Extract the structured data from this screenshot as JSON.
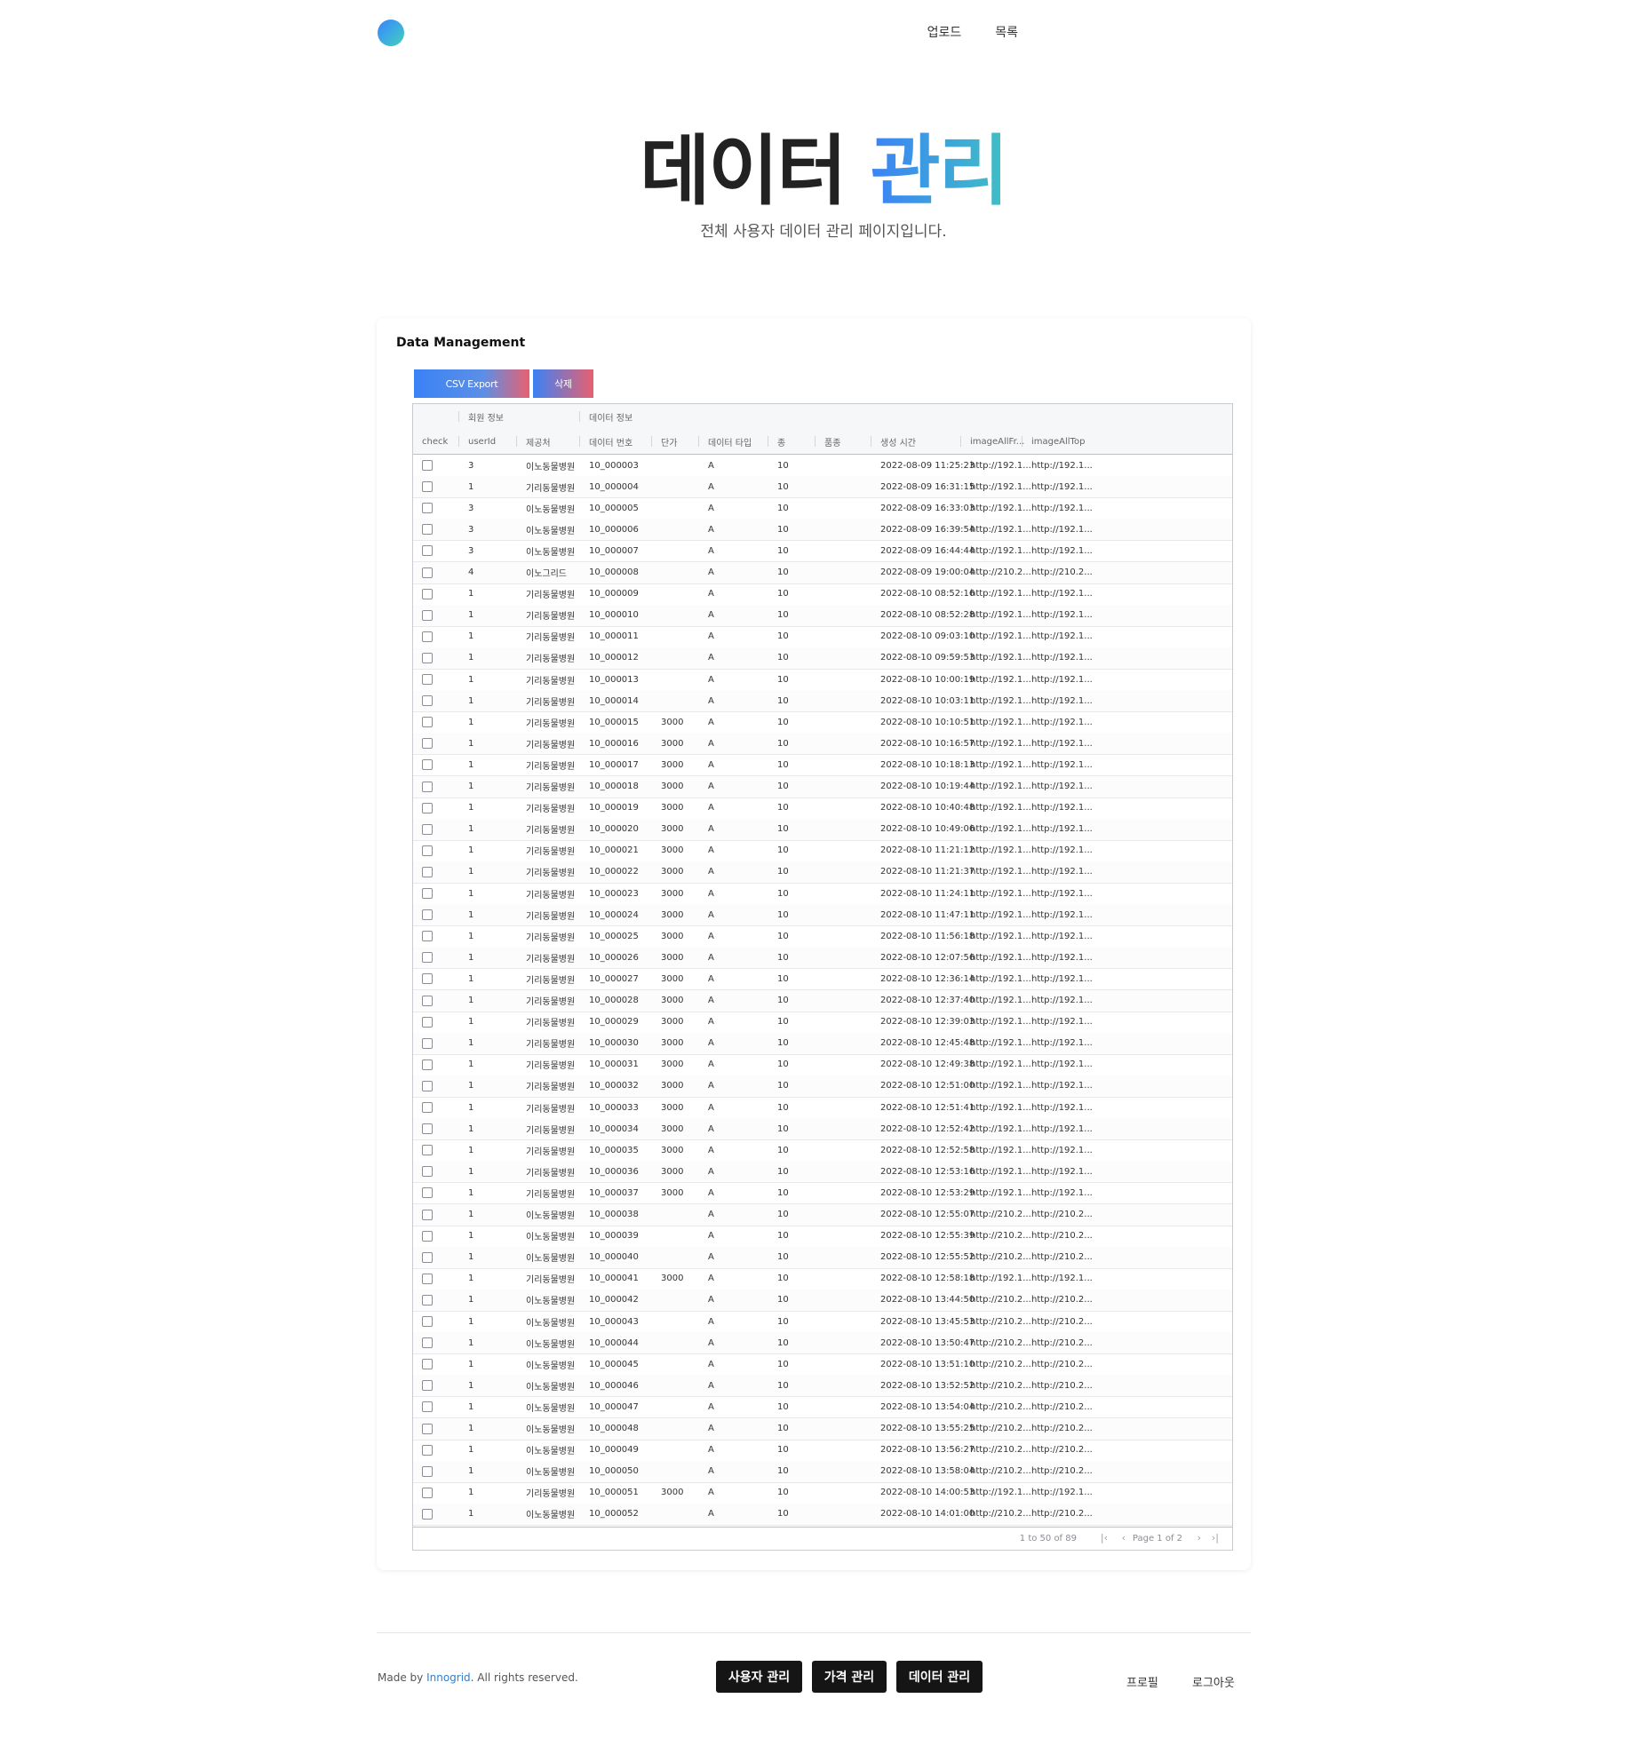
{
  "nav": {
    "upload": "업로드",
    "list": "목록"
  },
  "hero": {
    "title_main": "데이터",
    "title_accent": "관리",
    "subtitle": "전체 사용자 데이터 관리 페이지입니다."
  },
  "card": {
    "title": "Data Management",
    "export_label": "CSV Export",
    "delete_label": "삭제"
  },
  "groups": {
    "member": "회원 정보",
    "data": "데이터 정보"
  },
  "columns": [
    "check",
    "userId",
    "제공처",
    "데이터 번호",
    "단가",
    "데이터 타입",
    "종",
    "품종",
    "생성 시간",
    "imageAllFr...",
    "imageAllTop"
  ],
  "rows": [
    [
      "3",
      "이노동물병원",
      "10_000003",
      "",
      "A",
      "10",
      "",
      "2022-08-09 11:25:23",
      "http://192.1...",
      "http://192.1..."
    ],
    [
      "1",
      "기리동물병원",
      "10_000004",
      "",
      "A",
      "10",
      "",
      "2022-08-09 16:31:15",
      "http://192.1...",
      "http://192.1..."
    ],
    [
      "3",
      "이노동물병원",
      "10_000005",
      "",
      "A",
      "10",
      "",
      "2022-08-09 16:33:03",
      "http://192.1...",
      "http://192.1..."
    ],
    [
      "3",
      "이노동물병원",
      "10_000006",
      "",
      "A",
      "10",
      "",
      "2022-08-09 16:39:54",
      "http://192.1...",
      "http://192.1..."
    ],
    [
      "3",
      "이노동물병원",
      "10_000007",
      "",
      "A",
      "10",
      "",
      "2022-08-09 16:44:44",
      "http://192.1...",
      "http://192.1..."
    ],
    [
      "4",
      "이노그리드",
      "10_000008",
      "",
      "A",
      "10",
      "",
      "2022-08-09 19:00:04",
      "http://210.2...",
      "http://210.2..."
    ],
    [
      "1",
      "기리동물병원",
      "10_000009",
      "",
      "A",
      "10",
      "",
      "2022-08-10 08:52:16",
      "http://192.1...",
      "http://192.1..."
    ],
    [
      "1",
      "기리동물병원",
      "10_000010",
      "",
      "A",
      "10",
      "",
      "2022-08-10 08:52:28",
      "http://192.1...",
      "http://192.1..."
    ],
    [
      "1",
      "기리동물병원",
      "10_000011",
      "",
      "A",
      "10",
      "",
      "2022-08-10 09:03:10",
      "http://192.1...",
      "http://192.1..."
    ],
    [
      "1",
      "기리동물병원",
      "10_000012",
      "",
      "A",
      "10",
      "",
      "2022-08-10 09:59:53",
      "http://192.1...",
      "http://192.1..."
    ],
    [
      "1",
      "기리동물병원",
      "10_000013",
      "",
      "A",
      "10",
      "",
      "2022-08-10 10:00:19",
      "http://192.1...",
      "http://192.1..."
    ],
    [
      "1",
      "기리동물병원",
      "10_000014",
      "",
      "A",
      "10",
      "",
      "2022-08-10 10:03:11",
      "http://192.1...",
      "http://192.1..."
    ],
    [
      "1",
      "기리동물병원",
      "10_000015",
      "3000",
      "A",
      "10",
      "",
      "2022-08-10 10:10:51",
      "http://192.1...",
      "http://192.1..."
    ],
    [
      "1",
      "기리동물병원",
      "10_000016",
      "3000",
      "A",
      "10",
      "",
      "2022-08-10 10:16:57",
      "http://192.1...",
      "http://192.1..."
    ],
    [
      "1",
      "기리동물병원",
      "10_000017",
      "3000",
      "A",
      "10",
      "",
      "2022-08-10 10:18:13",
      "http://192.1...",
      "http://192.1..."
    ],
    [
      "1",
      "기리동물병원",
      "10_000018",
      "3000",
      "A",
      "10",
      "",
      "2022-08-10 10:19:44",
      "http://192.1...",
      "http://192.1..."
    ],
    [
      "1",
      "기리동물병원",
      "10_000019",
      "3000",
      "A",
      "10",
      "",
      "2022-08-10 10:40:48",
      "http://192.1...",
      "http://192.1..."
    ],
    [
      "1",
      "기리동물병원",
      "10_000020",
      "3000",
      "A",
      "10",
      "",
      "2022-08-10 10:49:06",
      "http://192.1...",
      "http://192.1..."
    ],
    [
      "1",
      "기리동물병원",
      "10_000021",
      "3000",
      "A",
      "10",
      "",
      "2022-08-10 11:21:12",
      "http://192.1...",
      "http://192.1..."
    ],
    [
      "1",
      "기리동물병원",
      "10_000022",
      "3000",
      "A",
      "10",
      "",
      "2022-08-10 11:21:37",
      "http://192.1...",
      "http://192.1..."
    ],
    [
      "1",
      "기리동물병원",
      "10_000023",
      "3000",
      "A",
      "10",
      "",
      "2022-08-10 11:24:11",
      "http://192.1...",
      "http://192.1..."
    ],
    [
      "1",
      "기리동물병원",
      "10_000024",
      "3000",
      "A",
      "10",
      "",
      "2022-08-10 11:47:11",
      "http://192.1...",
      "http://192.1..."
    ],
    [
      "1",
      "기리동물병원",
      "10_000025",
      "3000",
      "A",
      "10",
      "",
      "2022-08-10 11:56:18",
      "http://192.1...",
      "http://192.1..."
    ],
    [
      "1",
      "기리동물병원",
      "10_000026",
      "3000",
      "A",
      "10",
      "",
      "2022-08-10 12:07:56",
      "http://192.1...",
      "http://192.1..."
    ],
    [
      "1",
      "기리동물병원",
      "10_000027",
      "3000",
      "A",
      "10",
      "",
      "2022-08-10 12:36:14",
      "http://192.1...",
      "http://192.1..."
    ],
    [
      "1",
      "기리동물병원",
      "10_000028",
      "3000",
      "A",
      "10",
      "",
      "2022-08-10 12:37:40",
      "http://192.1...",
      "http://192.1..."
    ],
    [
      "1",
      "기리동물병원",
      "10_000029",
      "3000",
      "A",
      "10",
      "",
      "2022-08-10 12:39:03",
      "http://192.1...",
      "http://192.1..."
    ],
    [
      "1",
      "기리동물병원",
      "10_000030",
      "3000",
      "A",
      "10",
      "",
      "2022-08-10 12:45:48",
      "http://192.1...",
      "http://192.1..."
    ],
    [
      "1",
      "기리동물병원",
      "10_000031",
      "3000",
      "A",
      "10",
      "",
      "2022-08-10 12:49:38",
      "http://192.1...",
      "http://192.1..."
    ],
    [
      "1",
      "기리동물병원",
      "10_000032",
      "3000",
      "A",
      "10",
      "",
      "2022-08-10 12:51:00",
      "http://192.1...",
      "http://192.1..."
    ],
    [
      "1",
      "기리동물병원",
      "10_000033",
      "3000",
      "A",
      "10",
      "",
      "2022-08-10 12:51:41",
      "http://192.1...",
      "http://192.1..."
    ],
    [
      "1",
      "기리동물병원",
      "10_000034",
      "3000",
      "A",
      "10",
      "",
      "2022-08-10 12:52:42",
      "http://192.1...",
      "http://192.1..."
    ],
    [
      "1",
      "기리동물병원",
      "10_000035",
      "3000",
      "A",
      "10",
      "",
      "2022-08-10 12:52:58",
      "http://192.1...",
      "http://192.1..."
    ],
    [
      "1",
      "기리동물병원",
      "10_000036",
      "3000",
      "A",
      "10",
      "",
      "2022-08-10 12:53:16",
      "http://192.1...",
      "http://192.1..."
    ],
    [
      "1",
      "기리동물병원",
      "10_000037",
      "3000",
      "A",
      "10",
      "",
      "2022-08-10 12:53:29",
      "http://192.1...",
      "http://192.1..."
    ],
    [
      "1",
      "이노동물병원",
      "10_000038",
      "",
      "A",
      "10",
      "",
      "2022-08-10 12:55:07",
      "http://210.2...",
      "http://210.2..."
    ],
    [
      "1",
      "이노동물병원",
      "10_000039",
      "",
      "A",
      "10",
      "",
      "2022-08-10 12:55:39",
      "http://210.2...",
      "http://210.2..."
    ],
    [
      "1",
      "이노동물병원",
      "10_000040",
      "",
      "A",
      "10",
      "",
      "2022-08-10 12:55:52",
      "http://210.2...",
      "http://210.2..."
    ],
    [
      "1",
      "기리동물병원",
      "10_000041",
      "3000",
      "A",
      "10",
      "",
      "2022-08-10 12:58:18",
      "http://192.1...",
      "http://192.1..."
    ],
    [
      "1",
      "이노동물병원",
      "10_000042",
      "",
      "A",
      "10",
      "",
      "2022-08-10 13:44:50",
      "http://210.2...",
      "http://210.2..."
    ],
    [
      "1",
      "이노동물병원",
      "10_000043",
      "",
      "A",
      "10",
      "",
      "2022-08-10 13:45:53",
      "http://210.2...",
      "http://210.2..."
    ],
    [
      "1",
      "이노동물병원",
      "10_000044",
      "",
      "A",
      "10",
      "",
      "2022-08-10 13:50:47",
      "http://210.2...",
      "http://210.2..."
    ],
    [
      "1",
      "이노동물병원",
      "10_000045",
      "",
      "A",
      "10",
      "",
      "2022-08-10 13:51:10",
      "http://210.2...",
      "http://210.2..."
    ],
    [
      "1",
      "이노동물병원",
      "10_000046",
      "",
      "A",
      "10",
      "",
      "2022-08-10 13:52:52",
      "http://210.2...",
      "http://210.2..."
    ],
    [
      "1",
      "이노동물병원",
      "10_000047",
      "",
      "A",
      "10",
      "",
      "2022-08-10 13:54:04",
      "http://210.2...",
      "http://210.2..."
    ],
    [
      "1",
      "이노동물병원",
      "10_000048",
      "",
      "A",
      "10",
      "",
      "2022-08-10 13:55:25",
      "http://210.2...",
      "http://210.2..."
    ],
    [
      "1",
      "이노동물병원",
      "10_000049",
      "",
      "A",
      "10",
      "",
      "2022-08-10 13:56:27",
      "http://210.2...",
      "http://210.2..."
    ],
    [
      "1",
      "이노동물병원",
      "10_000050",
      "",
      "A",
      "10",
      "",
      "2022-08-10 13:58:04",
      "http://210.2...",
      "http://210.2..."
    ],
    [
      "1",
      "기리동물병원",
      "10_000051",
      "3000",
      "A",
      "10",
      "",
      "2022-08-10 14:00:53",
      "http://192.1...",
      "http://192.1..."
    ],
    [
      "1",
      "이노동물병원",
      "10_000052",
      "",
      "A",
      "10",
      "",
      "2022-08-10 14:01:00",
      "http://210.2...",
      "http://210.2..."
    ]
  ],
  "pagination": {
    "summary": "1 to 50 of 89",
    "page_text": "Page 1 of 2"
  },
  "footer": {
    "made_by_prefix": "Made by ",
    "brand": "Innogrid",
    "made_by_suffix": ". All rights reserved.",
    "btn_user": "사용자 관리",
    "btn_price": "가격 관리",
    "btn_data": "데이터 관리",
    "profile": "프로필",
    "logout": "로그아웃"
  },
  "colors": {
    "accent_blue": "#3b82f6",
    "accent_teal": "#3fc0c4",
    "accent_red": "#e86070",
    "dark_button": "#151515"
  }
}
